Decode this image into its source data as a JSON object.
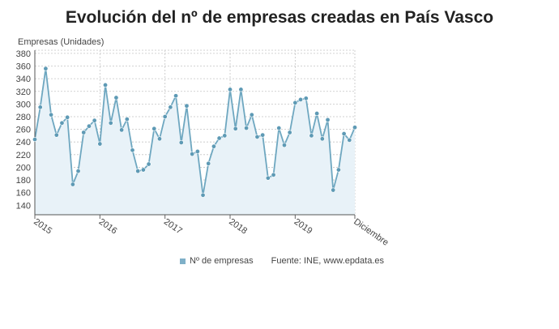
{
  "chart_data": {
    "type": "line",
    "title": "Evolución del nº de empresas creadas en País Vasco",
    "ylabel": "Empresas (Unidades)",
    "xlabel": "",
    "ylim": [
      125,
      385
    ],
    "yticks": [
      140,
      160,
      180,
      200,
      220,
      240,
      260,
      280,
      300,
      320,
      340,
      360,
      380
    ],
    "grid": true,
    "legend_position": "bottom",
    "x_tick_labels": [
      "2015",
      "2016",
      "2017",
      "2018",
      "2019",
      "Diciembre"
    ],
    "series": [
      {
        "name": "Nº de empresas",
        "color": "#6ea7c0",
        "fill": "#e8f2f8",
        "values": [
          244,
          295,
          356,
          283,
          251,
          270,
          279,
          173,
          194,
          255,
          265,
          274,
          237,
          330,
          270,
          310,
          259,
          276,
          227,
          194,
          196,
          205,
          261,
          245,
          280,
          295,
          313,
          239,
          297,
          221,
          225,
          156,
          206,
          233,
          246,
          250,
          323,
          261,
          323,
          262,
          283,
          248,
          251,
          183,
          188,
          262,
          235,
          255,
          302,
          307,
          309,
          250,
          285,
          245,
          275,
          164,
          196,
          253,
          243,
          263
        ]
      }
    ]
  },
  "legend": {
    "series_label": "Nº de empresas",
    "source": "Fuente: INE, www.epdata.es"
  }
}
